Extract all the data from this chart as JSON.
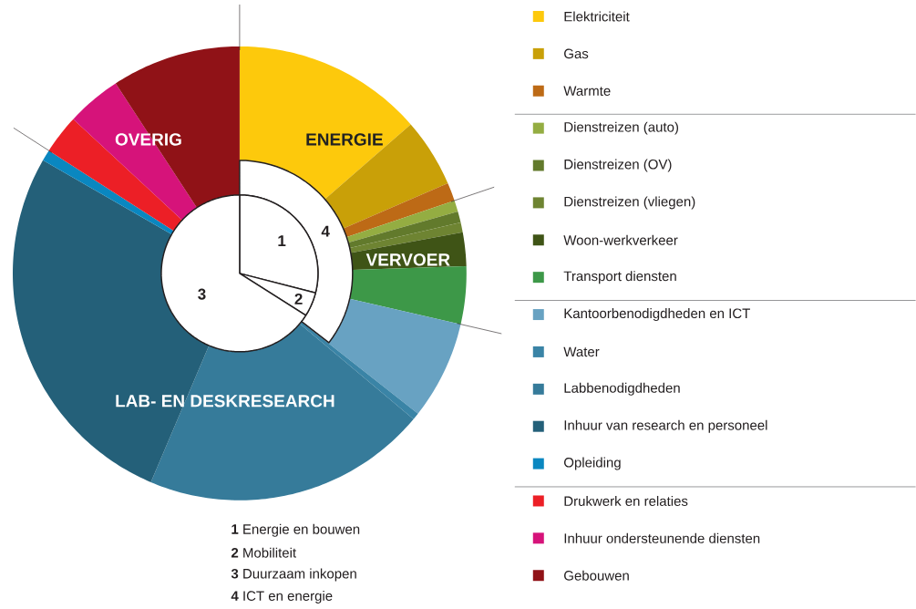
{
  "chart_data": [
    {
      "type": "donut",
      "legend": "right",
      "categories": [
        "Elektriciteit",
        "Gas",
        "Warmte",
        "Dienstreizen (auto)",
        "Dienstreizen (OV)",
        "Dienstreizen (vliegen)",
        "Woon-werkverkeer",
        "Transport diensten",
        "Kantoorbenodigdheden en ICT",
        "Water",
        "Labbenodigdheden",
        "Inhuur van research en personeel",
        "Opleiding",
        "Drukwerk en relaties",
        "Inhuur ondersteunende diensten",
        "Gebouwen"
      ],
      "values": [
        13.6,
        4.9,
        1.3,
        0.8,
        0.8,
        0.7,
        2.4,
        4.1,
        7.0,
        0.5,
        20.3,
        26.9,
        0.8,
        2.8,
        3.9,
        9.2
      ],
      "colors": [
        "#fdc90c",
        "#c9a008",
        "#bd6a16",
        "#94ad42",
        "#627a2c",
        "#6e8432",
        "#3f5416",
        "#3d9848",
        "#68a2c2",
        "#3a84a6",
        "#367b9a",
        "#246079",
        "#0a87c0",
        "#ec1f26",
        "#d6137a",
        "#901217"
      ],
      "annotations": [
        "ENERGIE",
        "VERVOER",
        "LAB- EN DESKRESEARCH",
        "OVERIG"
      ]
    },
    {
      "type": "pie",
      "categories": [
        "1",
        "2",
        "3"
      ],
      "values": [
        29,
        5,
        66
      ],
      "colors": [
        "#ffffff",
        "#ffffff",
        "#ffffff"
      ],
      "annotations": [
        "Energie en bouwen",
        "Mobiliteit",
        "Duurzaam inkopen",
        "4",
        "ICT en energie"
      ]
    }
  ]
}
